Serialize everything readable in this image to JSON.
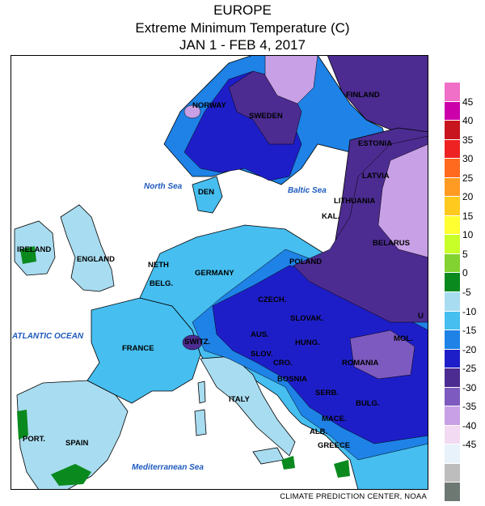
{
  "header": {
    "region": "EUROPE",
    "subtitle": "Extreme Minimum Temperature (C)",
    "dates": "JAN 1 - FEB 4, 2017"
  },
  "legend": {
    "labels": [
      "45",
      "40",
      "35",
      "30",
      "25",
      "20",
      "15",
      "10",
      "5",
      "0",
      "-5",
      "-10",
      "-15",
      "-20",
      "-25",
      "-30",
      "-35",
      "-40",
      "-45"
    ],
    "colors": [
      "#f06fc7",
      "#cc00aa",
      "#c8141e",
      "#ee2222",
      "#ff6a1e",
      "#ff9a22",
      "#ffc91e",
      "#ffff32",
      "#c8ff28",
      "#82d232",
      "#0a8a1e",
      "#a8dcf0",
      "#46bef0",
      "#1e82e6",
      "#1e1ec8",
      "#4c2c91",
      "#7d5abf",
      "#c8a0e6",
      "#f2daf2",
      "#e8f2fa",
      "#bdbdbd",
      "#6e7873"
    ]
  },
  "map": {
    "countries": [
      "NORWAY",
      "SWEDEN",
      "FINLAND",
      "ESTONIA",
      "LATVIA",
      "LITHUANIA",
      "KAL.",
      "BELARUS",
      "DEN",
      "POLAND",
      "CZECH.",
      "SLOVAK.",
      "IRELAND",
      "ENGLAND",
      "NETH",
      "BELG.",
      "GERMANY",
      "FRANCE",
      "SWITZ.",
      "AUS.",
      "HUNG.",
      "SLOV.",
      "CRO.",
      "BOSNIA",
      "SERB.",
      "ROMANIA",
      "MOL.",
      "U",
      "ITALY",
      "MACE.",
      "BULG.",
      "ALB.",
      "GREECE",
      "PORT.",
      "SPAIN"
    ],
    "seas": [
      "North Sea",
      "Baltic Sea",
      "ATLANTIC OCEAN",
      "Mediterranean Sea"
    ]
  },
  "footer": {
    "credit": "CLIMATE PREDICTION CENTER, NOAA"
  }
}
